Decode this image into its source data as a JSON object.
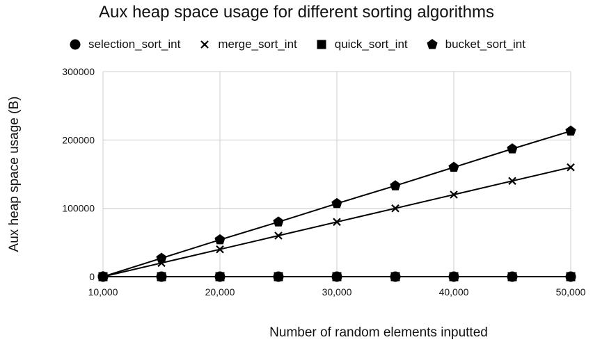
{
  "chart_data": {
    "type": "line",
    "title": "Aux heap space usage for different sorting algorithms",
    "xlabel": "Number of random elements inputted",
    "ylabel": "Aux heap space usage (B)",
    "x": [
      10000,
      15000,
      20000,
      25000,
      30000,
      35000,
      40000,
      45000,
      50000
    ],
    "x_tick_labels": [
      "10,000",
      "20,000",
      "30,000",
      "40,000",
      "50,000"
    ],
    "x_tick_values": [
      10000,
      20000,
      30000,
      40000,
      50000
    ],
    "xlim": [
      10000,
      50000
    ],
    "y_tick_labels": [
      "0",
      "100000",
      "200000",
      "300000"
    ],
    "y_tick_values": [
      0,
      100000,
      200000,
      300000
    ],
    "ylim": [
      0,
      300000
    ],
    "grid": true,
    "legend_position": "top",
    "series": [
      {
        "name": "selection_sort_int",
        "marker": "circle",
        "color": "#000000",
        "values": [
          0,
          0,
          0,
          0,
          0,
          0,
          0,
          0,
          0
        ]
      },
      {
        "name": "merge_sort_int",
        "marker": "x",
        "color": "#000000",
        "values": [
          0,
          20000,
          40000,
          60000,
          80000,
          100000,
          120000,
          140000,
          160000
        ]
      },
      {
        "name": "quick_sort_int",
        "marker": "square",
        "color": "#000000",
        "values": [
          0,
          0,
          0,
          0,
          0,
          0,
          0,
          0,
          0
        ]
      },
      {
        "name": "bucket_sort_int",
        "marker": "pentagon",
        "color": "#000000",
        "values": [
          0,
          27000,
          54000,
          80000,
          107000,
          133000,
          160000,
          187000,
          213000
        ]
      }
    ],
    "grid_color": "#cccccc",
    "axis_color": "#000000"
  }
}
